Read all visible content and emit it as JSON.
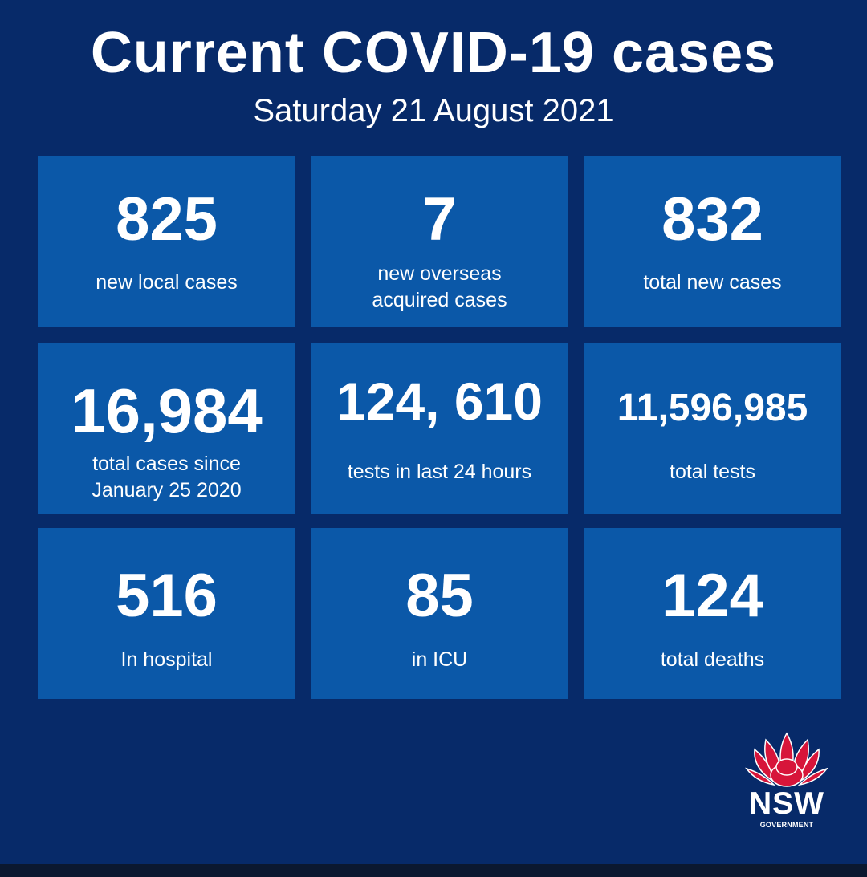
{
  "header": {
    "title": "Current COVID-19 cases",
    "date": "Saturday 21 August 2021"
  },
  "stats": [
    {
      "value": "825",
      "label": "new local cases"
    },
    {
      "value": "7",
      "label": "new overseas\nacquired cases"
    },
    {
      "value": "832",
      "label": "total new cases"
    },
    {
      "value": "16,984",
      "label": "total cases since\nJanuary 25 2020"
    },
    {
      "value": "124, 610",
      "label": "tests in last 24 hours"
    },
    {
      "value": "11,596,985",
      "label": "total tests"
    },
    {
      "value": "516",
      "label": "In hospital"
    },
    {
      "value": "85",
      "label": "in ICU"
    },
    {
      "value": "124",
      "label": "total deaths"
    }
  ],
  "logo": {
    "icon": "waratah-flower-icon",
    "name": "NSW",
    "subtitle": "GOVERNMENT"
  },
  "colors": {
    "background": "#072a69",
    "tile": "#0b58a8",
    "text": "#ffffff",
    "logo_red": "#d7153a"
  }
}
